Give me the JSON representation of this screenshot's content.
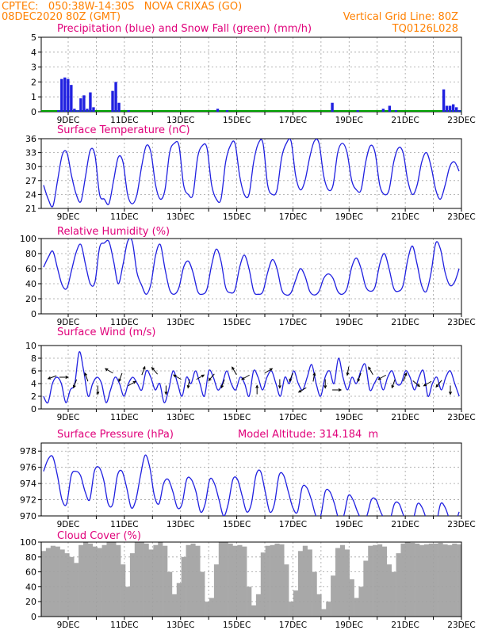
{
  "header": {
    "line1": "CPTEC:   050:38W-14:30S   NOVA CRIXAS (GO)",
    "line2": "08DEC2020 80Z (GMT)",
    "grid_note": "Vertical Grid Line: 80Z",
    "code": "TQ0126L028"
  },
  "colors": {
    "header": "#ff8000",
    "panel_title": "#e0007a",
    "series": "#2020e0",
    "snow": "#00a000",
    "cloud": "#a8a8a8",
    "grid": "#a0a0a0"
  },
  "x_axis": {
    "start": "08DEC2020 08Z",
    "end": "23DEC2020",
    "step_hours": 6,
    "tick_labels": [
      "9DEC",
      "11DEC",
      "13DEC",
      "15DEC",
      "17DEC",
      "19DEC",
      "21DEC",
      "23DEC"
    ]
  },
  "chart_data": [
    {
      "type": "bar",
      "title": "Precipitation (blue) and Snow Fall (green) (mm/h)",
      "ylim": [
        0,
        5
      ],
      "yticks": [
        0,
        1,
        2,
        3,
        4,
        5
      ],
      "grid": true,
      "series": [
        {
          "name": "Precipitation",
          "values": [
            0,
            0,
            0,
            0,
            0,
            0.1,
            2.2,
            2.3,
            2.2,
            1.8,
            0.2,
            0.1,
            0.9,
            1.1,
            0.2,
            1.3,
            0.3,
            0,
            0,
            0,
            0,
            0,
            1.4,
            2.0,
            0.6,
            0,
            0,
            0.1,
            0,
            0,
            0,
            0,
            0,
            0,
            0,
            0,
            0,
            0,
            0,
            0,
            0,
            0,
            0,
            0,
            0,
            0,
            0,
            0,
            0,
            0,
            0,
            0,
            0,
            0,
            0,
            0.2,
            0,
            0,
            0.1,
            0,
            0,
            0,
            0,
            0,
            0,
            0,
            0,
            0,
            0,
            0,
            0,
            0,
            0,
            0,
            0,
            0,
            0,
            0,
            0,
            0,
            0,
            0,
            0,
            0,
            0,
            0,
            0,
            0,
            0,
            0,
            0,
            0.6,
            0,
            0,
            0,
            0,
            0,
            0,
            0,
            0.1,
            0,
            0,
            0,
            0,
            0,
            0,
            0,
            0.2,
            0,
            0.4,
            0,
            0.1,
            0,
            0,
            0,
            0,
            0,
            0,
            0,
            0,
            0,
            0,
            0,
            0,
            0,
            0,
            1.5,
            0.4,
            0.4,
            0.5,
            0.3,
            0.1
          ]
        },
        {
          "name": "Snow Fall",
          "values": [
            0,
            0,
            0,
            0,
            0,
            0,
            0,
            0,
            0,
            0,
            0,
            0,
            0,
            0,
            0,
            0,
            0,
            0,
            0,
            0,
            0,
            0,
            0,
            0,
            0,
            0,
            0,
            0,
            0,
            0,
            0,
            0,
            0,
            0,
            0,
            0,
            0,
            0,
            0,
            0,
            0,
            0,
            0,
            0,
            0,
            0,
            0,
            0,
            0,
            0,
            0,
            0,
            0,
            0,
            0,
            0,
            0,
            0,
            0,
            0,
            0,
            0,
            0,
            0,
            0,
            0,
            0,
            0,
            0,
            0,
            0,
            0,
            0,
            0,
            0,
            0,
            0,
            0,
            0,
            0,
            0,
            0,
            0,
            0,
            0,
            0,
            0,
            0,
            0,
            0,
            0,
            0,
            0,
            0,
            0,
            0,
            0,
            0,
            0,
            0,
            0,
            0,
            0,
            0,
            0,
            0,
            0,
            0,
            0,
            0,
            0,
            0,
            0,
            0,
            0,
            0,
            0,
            0,
            0,
            0,
            0,
            0,
            0,
            0,
            0,
            0,
            0,
            0,
            0,
            0
          ]
        }
      ]
    },
    {
      "type": "line",
      "title": "Surface Temperature (nC)",
      "ylim": [
        21,
        36
      ],
      "yticks": [
        21,
        24,
        27,
        30,
        33,
        36
      ],
      "grid": true,
      "series": [
        {
          "values": [
            26,
            23,
            21.5,
            27,
            32.5,
            33,
            28,
            24,
            22.5,
            28,
            33.5,
            32.5,
            24,
            23,
            22,
            27,
            32,
            31,
            24,
            22,
            24,
            30,
            34.5,
            33,
            26,
            23,
            25,
            33,
            35,
            34.5,
            26,
            24,
            24,
            32,
            34.5,
            34,
            26,
            23,
            23,
            31,
            34.5,
            35,
            28,
            24,
            24,
            31,
            35,
            35,
            26,
            24,
            25,
            32,
            35,
            35.5,
            28,
            25,
            27,
            32,
            35.5,
            35,
            28,
            25,
            26,
            33,
            35,
            33,
            27,
            25,
            25,
            31,
            34.5,
            33,
            26,
            24,
            25,
            31,
            34,
            33,
            27,
            24,
            26,
            31,
            33,
            30,
            25,
            23,
            26,
            30,
            31,
            29
          ]
        }
      ]
    },
    {
      "type": "line",
      "title": "Relative Humidity (%)",
      "ylim": [
        0,
        100
      ],
      "yticks": [
        0,
        20,
        40,
        60,
        80,
        100
      ],
      "grid": true,
      "series": [
        {
          "values": [
            62,
            75,
            83,
            60,
            38,
            34,
            58,
            82,
            92,
            65,
            40,
            42,
            88,
            94,
            96,
            70,
            40,
            65,
            96,
            96,
            55,
            38,
            26,
            40,
            78,
            92,
            60,
            32,
            26,
            35,
            62,
            70,
            55,
            30,
            26,
            33,
            65,
            86,
            70,
            35,
            28,
            32,
            62,
            78,
            60,
            30,
            26,
            30,
            55,
            72,
            60,
            32,
            25,
            28,
            45,
            60,
            50,
            30,
            25,
            30,
            47,
            53,
            47,
            30,
            26,
            34,
            62,
            74,
            60,
            36,
            30,
            36,
            66,
            80,
            60,
            34,
            30,
            38,
            72,
            90,
            66,
            37,
            30,
            55,
            94,
            86,
            55,
            38,
            42,
            60
          ]
        }
      ]
    },
    {
      "type": "line",
      "title": "Surface Wind (m/s)",
      "ylim": [
        0,
        10
      ],
      "yticks": [
        0,
        2,
        4,
        6,
        8,
        10
      ],
      "grid": true,
      "series": [
        {
          "values": [
            2,
            1,
            4,
            5,
            4,
            1,
            3,
            4,
            9,
            6,
            2,
            4,
            5,
            4,
            1,
            3,
            5,
            4,
            2,
            4,
            5,
            4,
            3,
            6,
            5,
            3,
            4,
            1,
            3,
            6,
            4,
            2,
            5,
            4,
            6,
            4,
            2,
            6,
            5,
            3,
            4,
            6,
            4,
            3,
            5,
            4,
            2,
            6,
            5,
            3,
            5,
            6,
            4,
            2,
            5,
            4,
            6,
            4,
            3,
            5,
            7,
            4,
            2,
            5,
            6,
            4,
            8,
            5,
            3,
            5,
            4,
            6,
            7,
            3,
            4,
            5,
            3,
            5,
            6,
            4,
            4,
            6,
            5,
            3,
            5,
            6,
            2,
            4,
            5,
            3,
            5,
            6,
            4,
            2
          ]
        }
      ]
    },
    {
      "type": "line",
      "title": "Surface Pressure (hPa)",
      "annotation": "Model Altitude: 314.184  m",
      "ylim": [
        970,
        979
      ],
      "yticks": [
        970,
        972,
        974,
        976,
        978
      ],
      "grid": true,
      "series": [
        {
          "values": [
            975.5,
            977,
            977.3,
            975,
            972,
            971.5,
            975,
            975.5,
            975,
            973,
            972,
            975.5,
            976,
            974.5,
            971.5,
            971.5,
            975,
            975.5,
            973.5,
            971,
            972,
            975,
            977.5,
            976,
            972.5,
            971.5,
            974,
            974.5,
            973,
            971,
            971.5,
            974.5,
            974.5,
            973,
            970.5,
            971.5,
            974.5,
            974,
            972,
            970,
            971.5,
            974.5,
            974.5,
            972.5,
            970.5,
            971.5,
            975,
            975.5,
            973,
            970.5,
            971.5,
            975,
            975,
            973,
            971,
            970.5,
            973.5,
            973.5,
            972,
            970,
            970,
            973,
            973,
            971.5,
            969.5,
            970,
            972.5,
            972,
            970.5,
            969.5,
            970,
            972,
            972,
            970.5,
            969.5,
            969.5,
            971.5,
            971.5,
            970,
            969,
            969.5,
            971.5,
            971,
            969.5,
            968.5,
            969,
            971.5,
            971,
            969.5,
            969,
            970.5
          ]
        }
      ]
    },
    {
      "type": "area",
      "title": "Cloud Cover (%)",
      "ylim": [
        0,
        100
      ],
      "yticks": [
        0,
        20,
        40,
        60,
        80,
        100
      ],
      "grid": true,
      "series": [
        {
          "values": [
            88,
            92,
            95,
            94,
            90,
            85,
            80,
            72,
            96,
            100,
            98,
            94,
            92,
            96,
            100,
            100,
            96,
            70,
            40,
            85,
            100,
            100,
            98,
            90,
            96,
            100,
            95,
            60,
            30,
            45,
            80,
            96,
            98,
            95,
            60,
            20,
            25,
            70,
            100,
            100,
            98,
            95,
            96,
            94,
            40,
            15,
            30,
            86,
            95,
            96,
            98,
            97,
            70,
            20,
            35,
            88,
            95,
            90,
            60,
            30,
            10,
            20,
            55,
            92,
            96,
            90,
            50,
            25,
            40,
            75,
            95,
            96,
            97,
            94,
            70,
            60,
            85,
            98,
            100,
            99,
            98,
            96,
            97,
            98,
            98,
            99,
            97,
            96,
            98,
            97
          ]
        }
      ]
    }
  ],
  "wind_arrows": [
    {
      "dir": 250,
      "speed": 5
    },
    {
      "dir": 90,
      "speed": 5
    },
    {
      "dir": 200,
      "speed": 4
    },
    {
      "dir": 340,
      "speed": 5
    },
    {
      "dir": 180,
      "speed": 3
    },
    {
      "dir": 300,
      "speed": 6
    },
    {
      "dir": 200,
      "speed": 5
    },
    {
      "dir": 60,
      "speed": 4
    },
    {
      "dir": 20,
      "speed": 6
    },
    {
      "dir": 320,
      "speed": 6
    },
    {
      "dir": 180,
      "speed": 3
    },
    {
      "dir": 300,
      "speed": 5
    },
    {
      "dir": 190,
      "speed": 4
    },
    {
      "dir": 60,
      "speed": 5
    },
    {
      "dir": 220,
      "speed": 5
    },
    {
      "dir": 200,
      "speed": 4
    },
    {
      "dir": 330,
      "speed": 6
    },
    {
      "dir": 240,
      "speed": 5
    },
    {
      "dir": 0,
      "speed": 3
    },
    {
      "dir": 60,
      "speed": 6
    },
    {
      "dir": 180,
      "speed": 4
    },
    {
      "dir": 200,
      "speed": 5
    },
    {
      "dir": 240,
      "speed": 3
    },
    {
      "dir": 10,
      "speed": 5
    },
    {
      "dir": 180,
      "speed": 4
    },
    {
      "dir": 90,
      "speed": 3
    },
    {
      "dir": 190,
      "speed": 6
    },
    {
      "dir": 200,
      "speed": 5
    },
    {
      "dir": 330,
      "speed": 6
    },
    {
      "dir": 240,
      "speed": 5
    },
    {
      "dir": 200,
      "speed": 4
    },
    {
      "dir": 20,
      "speed": 5
    },
    {
      "dir": 130,
      "speed": 4
    },
    {
      "dir": 240,
      "speed": 4
    },
    {
      "dir": 220,
      "speed": 4
    },
    {
      "dir": 180,
      "speed": 3
    }
  ]
}
